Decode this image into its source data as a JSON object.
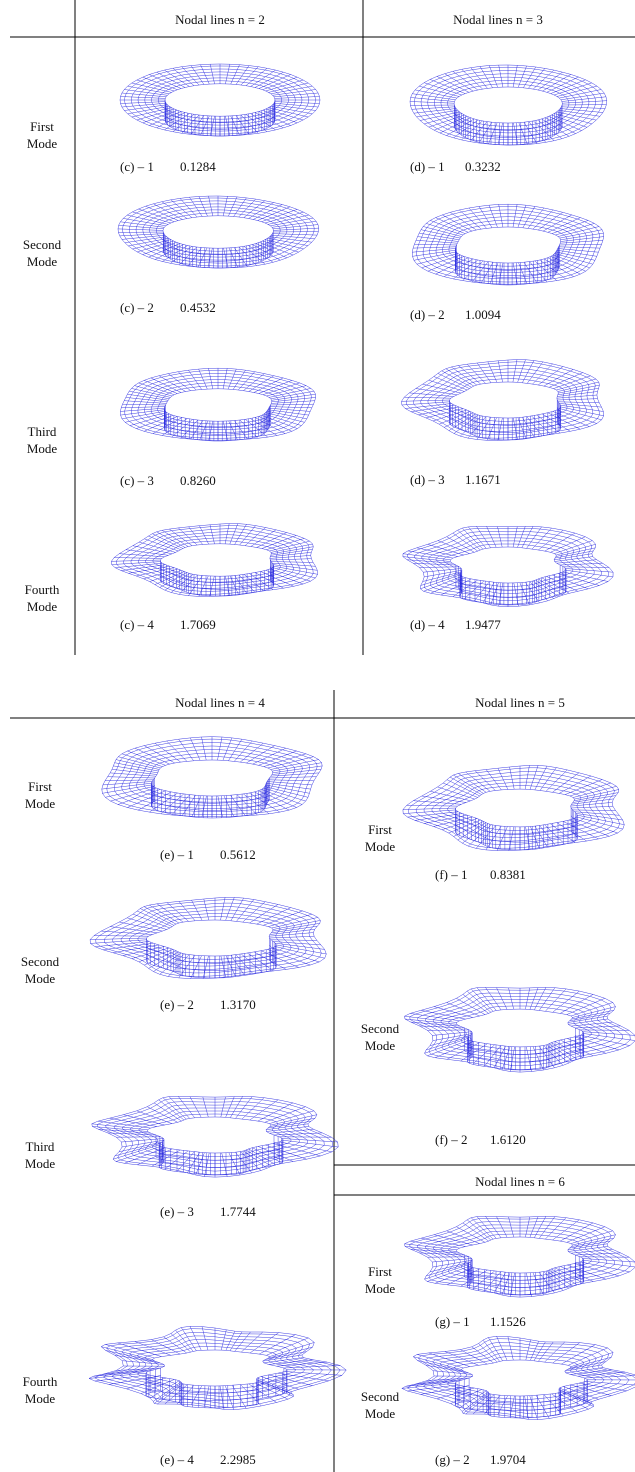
{
  "panels": [
    {
      "rows": [
        "First Mode",
        "Second Mode",
        "Third Mode",
        "Fourth Mode"
      ],
      "columns": [
        {
          "header": "Nodal lines n = 2",
          "modes": [
            {
              "label": "(c) – 1",
              "value": "0.1284"
            },
            {
              "label": "(c) – 2",
              "value": "0.4532"
            },
            {
              "label": "(c) – 3",
              "value": "0.8260"
            },
            {
              "label": "(c) – 4",
              "value": "1.7069"
            }
          ]
        },
        {
          "header": "Nodal lines n = 3",
          "modes": [
            {
              "label": "(d) – 1",
              "value": "0.3232"
            },
            {
              "label": "(d) – 2",
              "value": "1.0094"
            },
            {
              "label": "(d) – 3",
              "value": "1.1671"
            },
            {
              "label": "(d) – 4",
              "value": "1.9477"
            }
          ]
        }
      ]
    },
    {
      "columns": [
        {
          "header": "Nodal lines n = 4",
          "modes": [
            {
              "row": "First Mode",
              "label": "(e) – 1",
              "value": "0.5612"
            },
            {
              "row": "Second Mode",
              "label": "(e) – 2",
              "value": "1.3170"
            },
            {
              "row": "Third Mode",
              "label": "(e) – 3",
              "value": "1.7744"
            },
            {
              "row": "Fourth Mode",
              "label": "(e) – 4",
              "value": "2.2985"
            }
          ]
        },
        {
          "header": "Nodal lines n = 5",
          "modes": [
            {
              "row": "First Mode",
              "label": "(f) – 1",
              "value": "0.8381"
            },
            {
              "row": "Second Mode",
              "label": "(f) – 2",
              "value": "1.6120"
            }
          ]
        },
        {
          "header": "Nodal lines n = 6",
          "modes": [
            {
              "row": "First Mode",
              "label": "(g) – 1",
              "value": "1.1526"
            },
            {
              "row": "Second Mode",
              "label": "(g) – 2",
              "value": "1.9704"
            }
          ]
        }
      ]
    }
  ]
}
